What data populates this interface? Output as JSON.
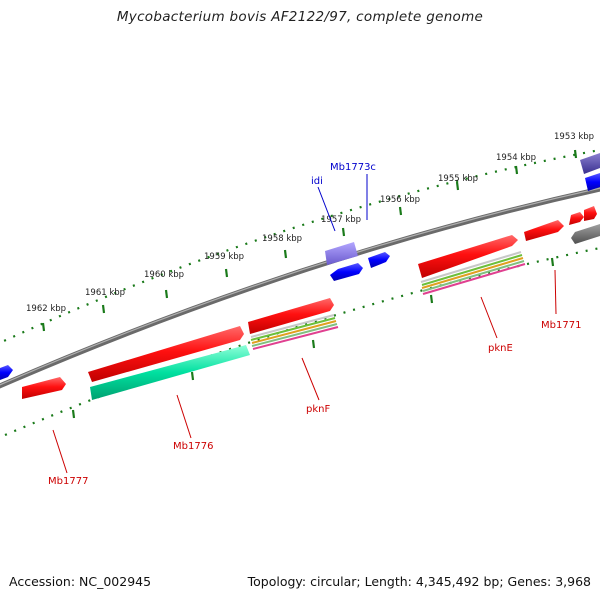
{
  "title": "Mycobacterium bovis AF2122/97, complete genome",
  "footer": {
    "accession": "Accession: NC_002945",
    "summary": "Topology: circular; Length: 4,345,492 bp; Genes: 3,968"
  },
  "ruler_labels": [
    "1953 kbp",
    "1954 kbp",
    "1955 kbp",
    "1956 kbp",
    "1957 kbp",
    "1958 kbp",
    "1959 kbp",
    "1960 kbp",
    "1961 kbp",
    "1962 kbp"
  ],
  "gene_labels": {
    "mb1773c": "Mb1773c",
    "idi": "idi",
    "mb1771": "Mb1771",
    "pkne": "pknE",
    "pknf": "pknF",
    "mb1776": "Mb1776",
    "mb1777": "Mb1777"
  },
  "colors": {
    "forward_gene": "#ff0000",
    "reverse_gene": "#0000ff",
    "rna": "#7b68ee",
    "other": "#707070",
    "backbone": "#808080",
    "ticks": "#1a7a1a",
    "cds_highlight": "#00e0a0",
    "label_forward": "#cc0000",
    "label_reverse": "#0000cc"
  }
}
